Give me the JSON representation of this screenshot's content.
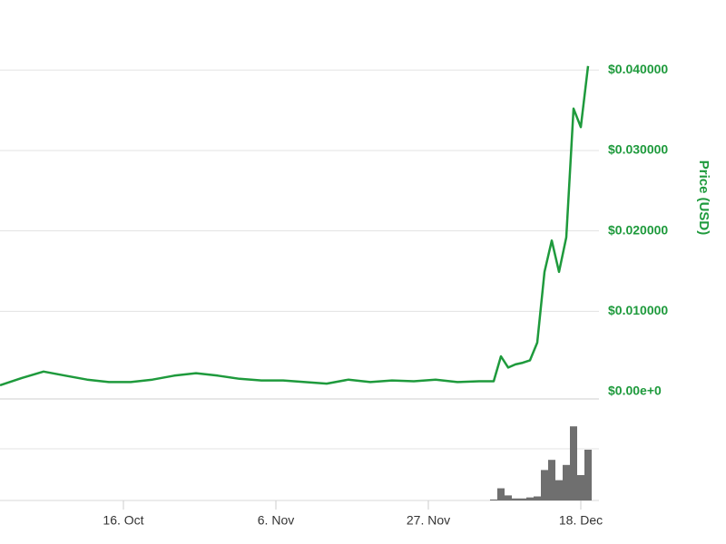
{
  "chart_data": [
    {
      "type": "line",
      "ylabel": "Price (USD)",
      "color": "#1e9a3c",
      "x": [
        "09-29",
        "10-02",
        "10-05",
        "10-08",
        "10-11",
        "10-14",
        "10-17",
        "10-20",
        "10-23",
        "10-26",
        "10-29",
        "11-01",
        "11-04",
        "11-07",
        "11-10",
        "11-13",
        "11-16",
        "11-19",
        "11-22",
        "11-25",
        "11-28",
        "12-01",
        "12-04",
        "12-06",
        "12-07",
        "12-08",
        "12-09",
        "12-10",
        "12-11",
        "12-12",
        "12-13",
        "12-14",
        "12-15",
        "12-16",
        "12-17",
        "12-18",
        "12-19"
      ],
      "values": [
        0.0008,
        0.0017,
        0.0025,
        0.002,
        0.0015,
        0.0012,
        0.0012,
        0.0015,
        0.002,
        0.0023,
        0.002,
        0.0016,
        0.0014,
        0.0014,
        0.0012,
        0.001,
        0.0015,
        0.0012,
        0.0014,
        0.0013,
        0.0015,
        0.0012,
        0.0013,
        0.0013,
        0.0044,
        0.003,
        0.0034,
        0.0036,
        0.0039,
        0.0061,
        0.0149,
        0.0188,
        0.0149,
        0.0192,
        0.0352,
        0.0329,
        0.0405
      ],
      "xlim": [
        "09-29",
        "12-19"
      ],
      "xticks": [
        {
          "value": "10-16",
          "label": "16. Oct"
        },
        {
          "value": "11-06",
          "label": "6. Nov"
        },
        {
          "value": "11-27",
          "label": "27. Nov"
        },
        {
          "value": "12-18",
          "label": "18. Dec"
        }
      ],
      "ylim": [
        -0.0009,
        0.0442
      ],
      "yticks": [
        {
          "value": 0,
          "label": "$0.00e+0"
        },
        {
          "value": 0.01,
          "label": "$0.010000"
        },
        {
          "value": 0.02,
          "label": "$0.020000"
        },
        {
          "value": 0.03,
          "label": "$0.030000"
        },
        {
          "value": 0.04,
          "label": "$0.040000"
        }
      ],
      "grid": true
    },
    {
      "type": "bar",
      "color": "#6f6f6f",
      "x": [
        "12-06",
        "12-07",
        "12-08",
        "12-09",
        "12-10",
        "12-11",
        "12-12",
        "12-13",
        "12-14",
        "12-15",
        "12-16",
        "12-17",
        "12-18",
        "12-19"
      ],
      "values": [
        1,
        12,
        5,
        2,
        2,
        3,
        4,
        30,
        40,
        20,
        35,
        73,
        25,
        50
      ],
      "xlim": [
        "09-29",
        "12-19"
      ],
      "ylim": [
        0,
        100
      ]
    }
  ]
}
